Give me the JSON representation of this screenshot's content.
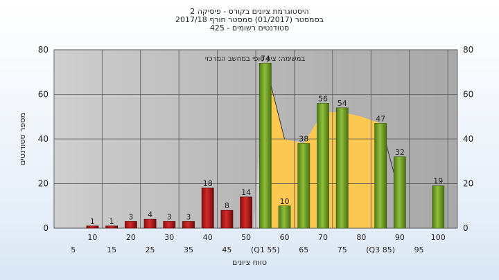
{
  "chart_data": {
    "type": "bar",
    "title_lines": [
      "היסטוגרמת ציונים בקורס - פיסיקה 2",
      "בסמסטר  (01/2017)  סמסטר חורף  2017/18",
      "סטודנטים רשומים - 425"
    ],
    "xlabel": "טווח ציונים",
    "ylabel": "מספר סטודנטים",
    "annotation": "במשימה: ציון סופי במחשב המרכזי",
    "ylim": [
      0,
      80
    ],
    "yticks": [
      0,
      20,
      40,
      60,
      80
    ],
    "x_tick_labels": [
      "5",
      "10",
      "15",
      "20",
      "25",
      "30",
      "35",
      "40",
      "45",
      "50",
      "(Q1 55)",
      "60",
      "65",
      "70",
      "75",
      "80",
      "(Q3 85)",
      "90",
      "95",
      "100"
    ],
    "categories": [
      "10",
      "15",
      "20",
      "25",
      "30",
      "35",
      "40",
      "45",
      "50",
      "55",
      "60",
      "65",
      "70",
      "75",
      "80",
      "85",
      "90",
      "95",
      "100"
    ],
    "values": [
      1,
      1,
      3,
      4,
      3,
      3,
      18,
      8,
      14,
      74,
      10,
      38,
      56,
      54,
      0,
      47,
      32,
      0,
      19
    ],
    "data_labels": [
      "1",
      "1",
      "3",
      "4",
      "3",
      "3",
      "18",
      "8",
      "14",
      "74",
      "10",
      "38",
      "56",
      "54",
      "",
      "47",
      "32",
      "",
      "19"
    ],
    "iqr_area": [
      {
        "x": 55,
        "y": 74
      },
      {
        "x": 60,
        "y": 40
      },
      {
        "x": 65,
        "y": 38
      },
      {
        "x": 70,
        "y": 52
      },
      {
        "x": 75,
        "y": 52
      },
      {
        "x": 80,
        "y": 50
      },
      {
        "x": 85,
        "y": 47
      }
    ],
    "colors": {
      "fail_bar": "#d42a2a",
      "pass_bar": "#8fbf3a",
      "iqr_fill": "#ffc94d",
      "plot_bg": "#b9b9b9",
      "grid": "#555555"
    },
    "grid": true
  }
}
